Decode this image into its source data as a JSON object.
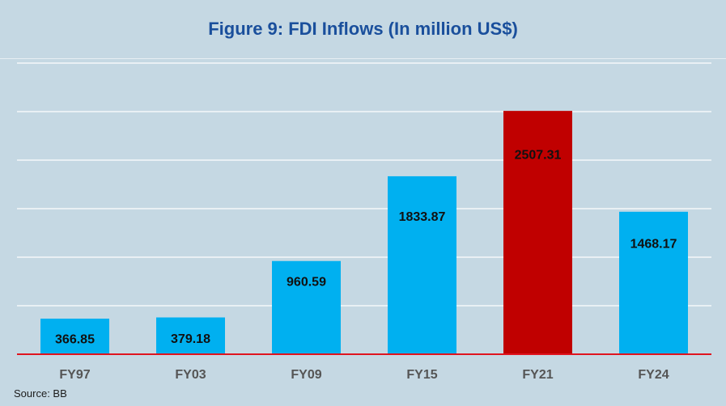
{
  "chart_data": {
    "type": "bar",
    "title": "Figure 9: FDI Inflows (In million US$)",
    "categories": [
      "FY97",
      "FY03",
      "FY09",
      "FY15",
      "FY21",
      "FY24"
    ],
    "values": [
      366.85,
      379.18,
      960.59,
      1833.87,
      2507.31,
      1468.17
    ],
    "value_labels": [
      "366.85",
      "379.18",
      "960.59",
      "1833.87",
      "2507.31",
      "1468.17"
    ],
    "bar_colors": [
      "#00b0f0",
      "#00b0f0",
      "#00b0f0",
      "#00b0f0",
      "#c00000",
      "#00b0f0"
    ],
    "xlabel": "",
    "ylabel": "",
    "ylim": [
      0,
      3000
    ],
    "y_tick_step": 500,
    "y_tick_labels_shown": false,
    "grid": true,
    "grid_color": "#ffffff",
    "baseline_color": "#e0141e",
    "legend": "none"
  },
  "source": "Source: BB",
  "colors": {
    "background": "#c5d8e3",
    "title": "#1a4f9c",
    "bar_default": "#00b0f0",
    "bar_highlight": "#c00000"
  }
}
